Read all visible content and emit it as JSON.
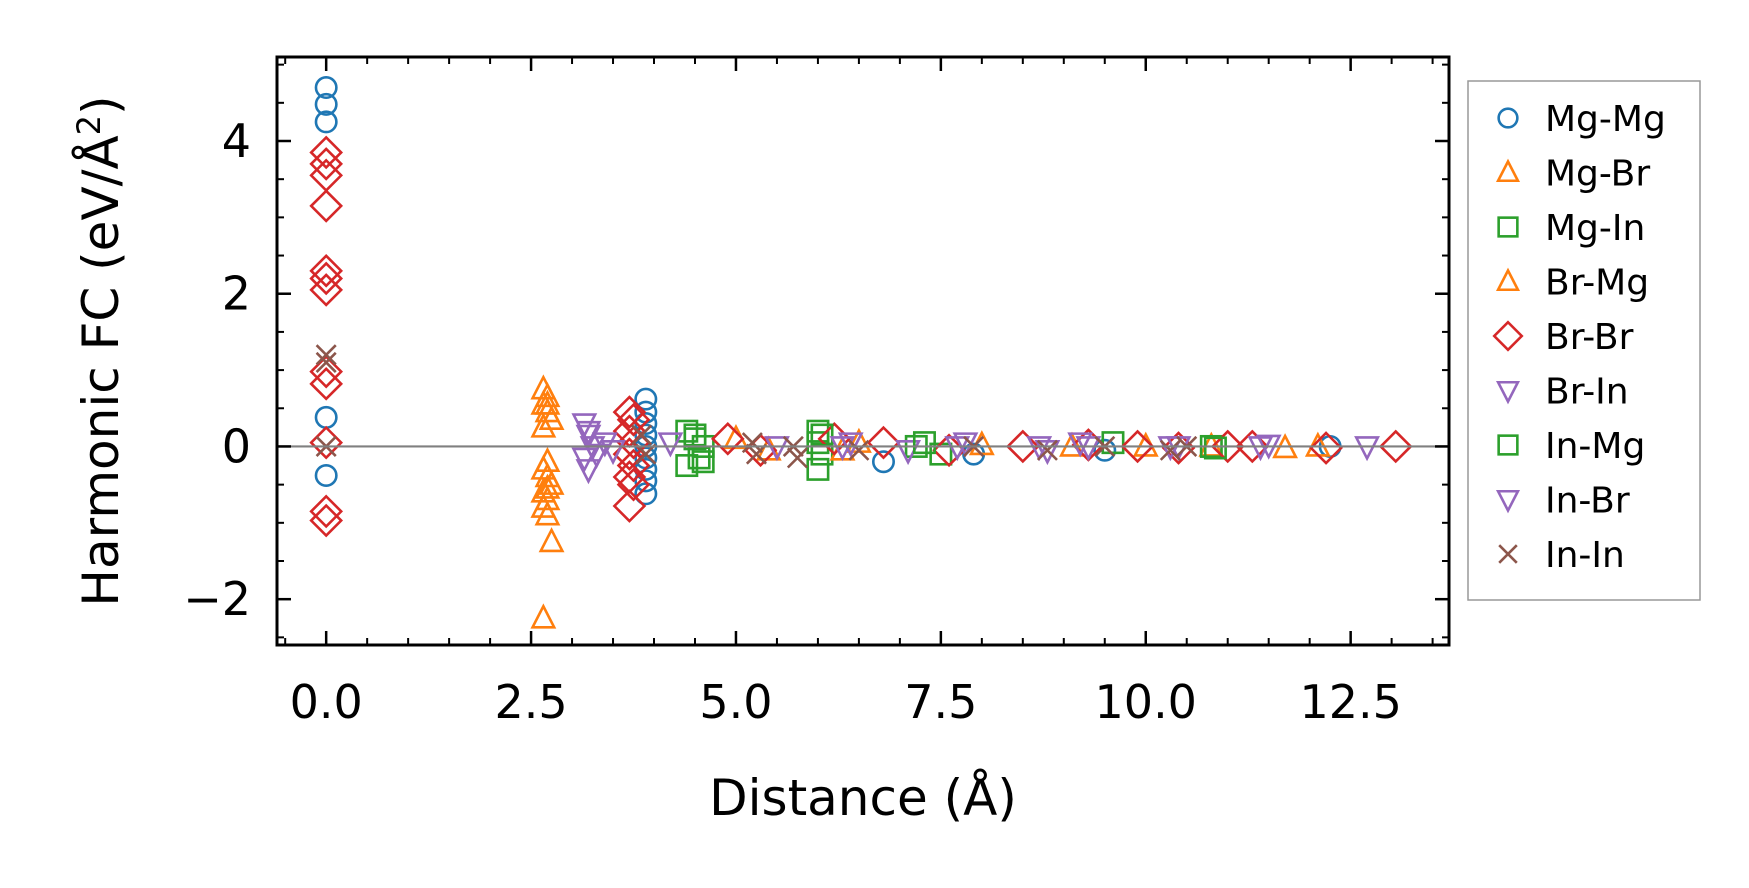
{
  "chart_data": {
    "type": "scatter",
    "title": "",
    "xlabel": "Distance (Å)",
    "ylabel_main": "Harmonic FC (eV/Å",
    "ylabel_sup": "2",
    "ylabel_close": ")",
    "xlim": [
      -0.6,
      13.7
    ],
    "ylim": [
      -2.6,
      5.1
    ],
    "xticks": [
      0.0,
      2.5,
      5.0,
      7.5,
      10.0,
      12.5
    ],
    "xtick_labels": [
      "0.0",
      "2.5",
      "5.0",
      "7.5",
      "10.0",
      "12.5"
    ],
    "yticks": [
      -2,
      0,
      2,
      4
    ],
    "ytick_labels": [
      "−2",
      "0",
      "2",
      "4"
    ],
    "reference_line_y": 0,
    "legend_position": "outside-right",
    "series": [
      {
        "name": "Mg-Mg",
        "marker": "circle",
        "color": "#1f77b4",
        "points": [
          [
            0,
            4.7
          ],
          [
            0,
            4.48
          ],
          [
            0,
            4.25
          ],
          [
            0,
            0.38
          ],
          [
            0,
            -0.38
          ],
          [
            3.9,
            0.62
          ],
          [
            3.9,
            0.45
          ],
          [
            3.9,
            0.3
          ],
          [
            3.9,
            0.15
          ],
          [
            3.9,
            0.0
          ],
          [
            3.9,
            -0.15
          ],
          [
            3.9,
            -0.3
          ],
          [
            3.9,
            -0.45
          ],
          [
            3.9,
            -0.62
          ],
          [
            6.8,
            -0.2
          ],
          [
            7.9,
            -0.1
          ],
          [
            9.5,
            -0.05
          ],
          [
            12.25,
            0.0
          ]
        ]
      },
      {
        "name": "Mg-Br",
        "marker": "triangle-up",
        "color": "#ff7f0e",
        "points": [
          [
            2.65,
            0.75
          ],
          [
            2.7,
            0.65
          ],
          [
            2.65,
            0.55
          ],
          [
            2.7,
            0.45
          ],
          [
            2.75,
            0.35
          ],
          [
            2.65,
            0.25
          ],
          [
            2.7,
            -0.2
          ],
          [
            2.65,
            -0.3
          ],
          [
            2.7,
            -0.4
          ],
          [
            2.75,
            -0.5
          ],
          [
            2.65,
            -0.6
          ],
          [
            2.7,
            -0.7
          ],
          [
            2.65,
            -0.8
          ],
          [
            2.7,
            -0.9
          ],
          [
            2.75,
            -1.25
          ],
          [
            2.65,
            -2.25
          ],
          [
            5.4,
            -0.05
          ],
          [
            6.5,
            0.05
          ],
          [
            8.0,
            0.02
          ],
          [
            9.1,
            0.0
          ],
          [
            10.8,
            0.0
          ],
          [
            11.7,
            -0.02
          ]
        ]
      },
      {
        "name": "Mg-In",
        "marker": "square",
        "color": "#2ca02c",
        "points": [
          [
            4.4,
            0.2
          ],
          [
            4.5,
            0.1
          ],
          [
            4.6,
            0.0
          ],
          [
            4.55,
            -0.15
          ],
          [
            4.4,
            -0.25
          ],
          [
            6.0,
            0.2
          ],
          [
            6.0,
            0.05
          ],
          [
            6.05,
            -0.1
          ],
          [
            6.0,
            -0.3
          ],
          [
            7.2,
            0.0
          ],
          [
            7.5,
            -0.1
          ],
          [
            9.6,
            0.05
          ],
          [
            10.8,
            0.0
          ]
        ]
      },
      {
        "name": "Br-Mg",
        "marker": "triangle-up",
        "color": "#ff7f0e",
        "points": [
          [
            2.7,
            0.55
          ],
          [
            2.7,
            -0.55
          ],
          [
            5.0,
            0.1
          ],
          [
            6.3,
            -0.05
          ],
          [
            10.0,
            0.0
          ],
          [
            12.1,
            0.0
          ]
        ]
      },
      {
        "name": "Br-Br",
        "marker": "diamond",
        "color": "#d62728",
        "points": [
          [
            0,
            3.85
          ],
          [
            0,
            3.7
          ],
          [
            0,
            3.55
          ],
          [
            0,
            3.15
          ],
          [
            0,
            2.3
          ],
          [
            0,
            2.2
          ],
          [
            0,
            2.05
          ],
          [
            0,
            0.98
          ],
          [
            0,
            0.82
          ],
          [
            0,
            0.05
          ],
          [
            0,
            -0.85
          ],
          [
            0,
            -0.97
          ],
          [
            3.7,
            0.45
          ],
          [
            3.75,
            0.35
          ],
          [
            3.7,
            0.2
          ],
          [
            3.75,
            0.05
          ],
          [
            3.7,
            -0.1
          ],
          [
            3.75,
            -0.25
          ],
          [
            3.7,
            -0.4
          ],
          [
            3.75,
            -0.5
          ],
          [
            3.7,
            -0.78
          ],
          [
            4.9,
            0.1
          ],
          [
            5.3,
            -0.05
          ],
          [
            6.2,
            0.1
          ],
          [
            6.8,
            0.05
          ],
          [
            7.6,
            -0.05
          ],
          [
            8.5,
            0.0
          ],
          [
            9.3,
            0.02
          ],
          [
            9.9,
            0.0
          ],
          [
            10.4,
            -0.02
          ],
          [
            11.0,
            0.0
          ],
          [
            11.3,
            0.0
          ],
          [
            12.2,
            -0.02
          ],
          [
            13.05,
            0.0
          ]
        ]
      },
      {
        "name": "Br-In",
        "marker": "triangle-down",
        "color": "#9467bd",
        "points": [
          [
            3.15,
            0.3
          ],
          [
            3.2,
            0.15
          ],
          [
            3.25,
            0.0
          ],
          [
            3.15,
            -0.15
          ],
          [
            3.2,
            -0.3
          ],
          [
            3.4,
            0.05
          ],
          [
            3.5,
            -0.05
          ],
          [
            4.2,
            0.05
          ],
          [
            5.5,
            0.0
          ],
          [
            6.4,
            0.05
          ],
          [
            7.1,
            -0.05
          ],
          [
            7.7,
            0.0
          ],
          [
            8.7,
            0.0
          ],
          [
            9.2,
            0.05
          ],
          [
            10.3,
            0.0
          ],
          [
            11.4,
            0.0
          ],
          [
            12.7,
            0.0
          ]
        ]
      },
      {
        "name": "In-Mg",
        "marker": "square",
        "color": "#2ca02c",
        "points": [
          [
            4.5,
            0.15
          ],
          [
            4.6,
            -0.2
          ],
          [
            6.05,
            0.15
          ],
          [
            7.3,
            0.05
          ],
          [
            10.85,
            -0.02
          ]
        ]
      },
      {
        "name": "In-Br",
        "marker": "triangle-down",
        "color": "#9467bd",
        "points": [
          [
            3.2,
            0.2
          ],
          [
            3.3,
            -0.1
          ],
          [
            6.3,
            0.0
          ],
          [
            7.8,
            0.05
          ],
          [
            8.8,
            -0.05
          ],
          [
            9.3,
            0.0
          ],
          [
            10.4,
            0.0
          ],
          [
            11.5,
            0.02
          ]
        ]
      },
      {
        "name": "In-In",
        "marker": "x",
        "color": "#8c564b",
        "points": [
          [
            0,
            1.2
          ],
          [
            0,
            1.1
          ],
          [
            0,
            0.0
          ],
          [
            3.85,
            0.15
          ],
          [
            3.9,
            -0.1
          ],
          [
            5.2,
            0.05
          ],
          [
            5.25,
            -0.1
          ],
          [
            5.7,
            0.0
          ],
          [
            5.75,
            -0.15
          ],
          [
            6.5,
            -0.05
          ],
          [
            7.9,
            0.0
          ],
          [
            8.8,
            -0.05
          ],
          [
            9.5,
            0.0
          ],
          [
            10.3,
            -0.05
          ],
          [
            10.5,
            0.0
          ]
        ]
      }
    ]
  }
}
